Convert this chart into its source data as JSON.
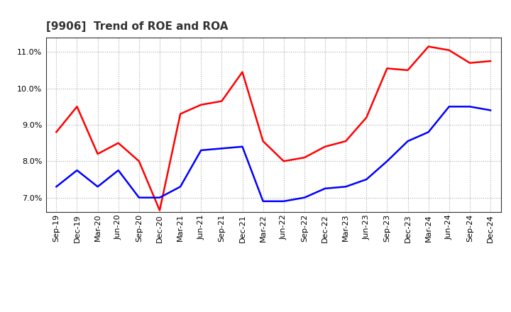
{
  "title": "[9906]  Trend of ROE and ROA",
  "x_labels": [
    "Sep-19",
    "Dec-19",
    "Mar-20",
    "Jun-20",
    "Sep-20",
    "Dec-20",
    "Mar-21",
    "Jun-21",
    "Sep-21",
    "Dec-21",
    "Mar-22",
    "Jun-22",
    "Sep-22",
    "Dec-22",
    "Mar-23",
    "Jun-23",
    "Sep-23",
    "Dec-23",
    "Mar-24",
    "Jun-24",
    "Sep-24",
    "Dec-24"
  ],
  "roe": [
    8.8,
    9.5,
    8.2,
    8.5,
    8.0,
    6.65,
    9.3,
    9.55,
    9.65,
    10.45,
    8.55,
    8.0,
    8.1,
    8.4,
    8.55,
    9.2,
    10.55,
    10.5,
    11.15,
    11.05,
    10.7,
    10.75
  ],
  "roa": [
    7.3,
    7.75,
    7.3,
    7.75,
    7.0,
    7.0,
    7.3,
    8.3,
    8.35,
    8.4,
    6.9,
    6.9,
    7.0,
    7.25,
    7.3,
    7.5,
    8.0,
    8.55,
    8.8,
    9.5,
    9.5,
    9.4
  ],
  "roe_color": "#ff0000",
  "roa_color": "#0000ff",
  "ylim": [
    6.6,
    11.4
  ],
  "yticks": [
    7.0,
    8.0,
    9.0,
    10.0,
    11.0
  ],
  "background_color": "#ffffff",
  "grid_color": "#aaaaaa",
  "title_fontsize": 11,
  "legend_fontsize": 9,
  "tick_fontsize": 8,
  "linewidth": 1.8
}
